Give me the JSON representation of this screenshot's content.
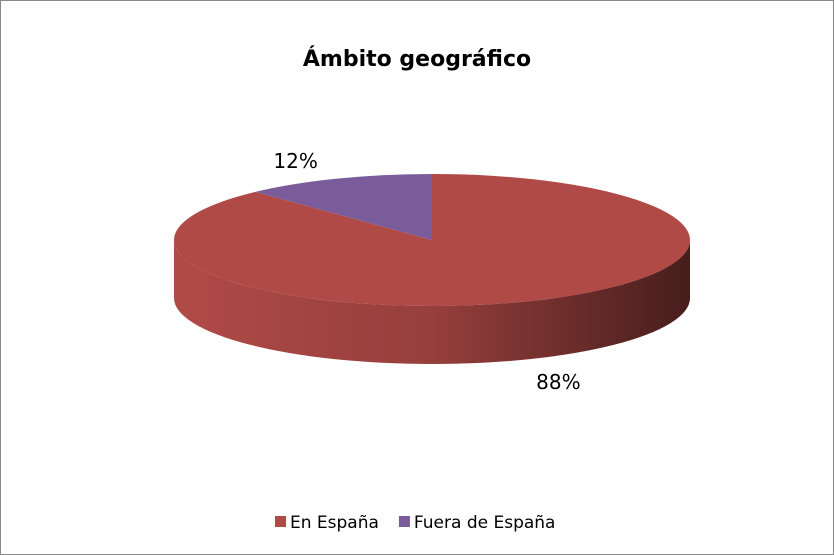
{
  "chart_data": {
    "type": "pie",
    "title": "Ámbito geográfico",
    "categories": [
      "En España",
      "Fuera de España"
    ],
    "values": [
      88,
      12
    ],
    "value_labels": [
      "88%",
      "12%"
    ],
    "colors": [
      "#b04a47",
      "#7a5c9a"
    ],
    "legend": "bottom"
  }
}
